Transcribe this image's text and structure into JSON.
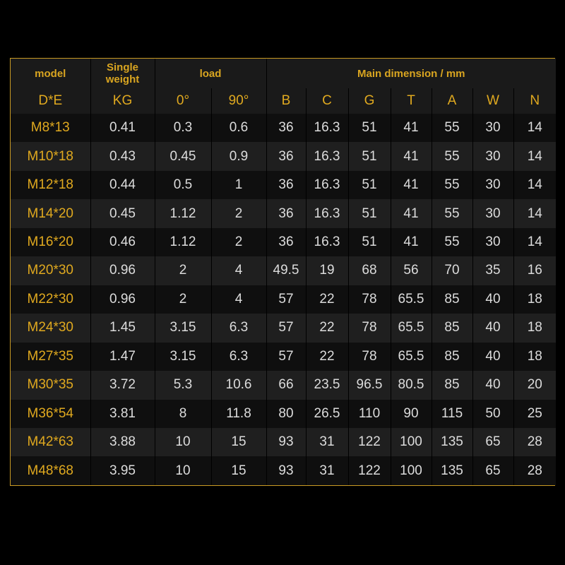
{
  "header_top": [
    "model",
    "Single weight",
    "load",
    "Main dimension / mm"
  ],
  "header_units": [
    "D*E",
    "KG",
    "0°",
    "90°",
    "B",
    "C",
    "G",
    "T",
    "A",
    "W",
    "N"
  ],
  "rows": [
    [
      "M8*13",
      "0.41",
      "0.3",
      "0.6",
      "36",
      "16.3",
      "51",
      "41",
      "55",
      "30",
      "14"
    ],
    [
      "M10*18",
      "0.43",
      "0.45",
      "0.9",
      "36",
      "16.3",
      "51",
      "41",
      "55",
      "30",
      "14"
    ],
    [
      "M12*18",
      "0.44",
      "0.5",
      "1",
      "36",
      "16.3",
      "51",
      "41",
      "55",
      "30",
      "14"
    ],
    [
      "M14*20",
      "0.45",
      "1.12",
      "2",
      "36",
      "16.3",
      "51",
      "41",
      "55",
      "30",
      "14"
    ],
    [
      "M16*20",
      "0.46",
      "1.12",
      "2",
      "36",
      "16.3",
      "51",
      "41",
      "55",
      "30",
      "14"
    ],
    [
      "M20*30",
      "0.96",
      "2",
      "4",
      "49.5",
      "19",
      "68",
      "56",
      "70",
      "35",
      "16"
    ],
    [
      "M22*30",
      "0.96",
      "2",
      "4",
      "57",
      "22",
      "78",
      "65.5",
      "85",
      "40",
      "18"
    ],
    [
      "M24*30",
      "1.45",
      "3.15",
      "6.3",
      "57",
      "22",
      "78",
      "65.5",
      "85",
      "40",
      "18"
    ],
    [
      "M27*35",
      "1.47",
      "3.15",
      "6.3",
      "57",
      "22",
      "78",
      "65.5",
      "85",
      "40",
      "18"
    ],
    [
      "M30*35",
      "3.72",
      "5.3",
      "10.6",
      "66",
      "23.5",
      "96.5",
      "80.5",
      "85",
      "40",
      "20"
    ],
    [
      "M36*54",
      "3.81",
      "8",
      "11.8",
      "80",
      "26.5",
      "110",
      "90",
      "115",
      "50",
      "25"
    ],
    [
      "M42*63",
      "3.88",
      "10",
      "15",
      "93",
      "31",
      "122",
      "100",
      "135",
      "65",
      "28"
    ],
    [
      "M48*68",
      "3.95",
      "10",
      "15",
      "93",
      "31",
      "122",
      "100",
      "135",
      "65",
      "28"
    ]
  ]
}
